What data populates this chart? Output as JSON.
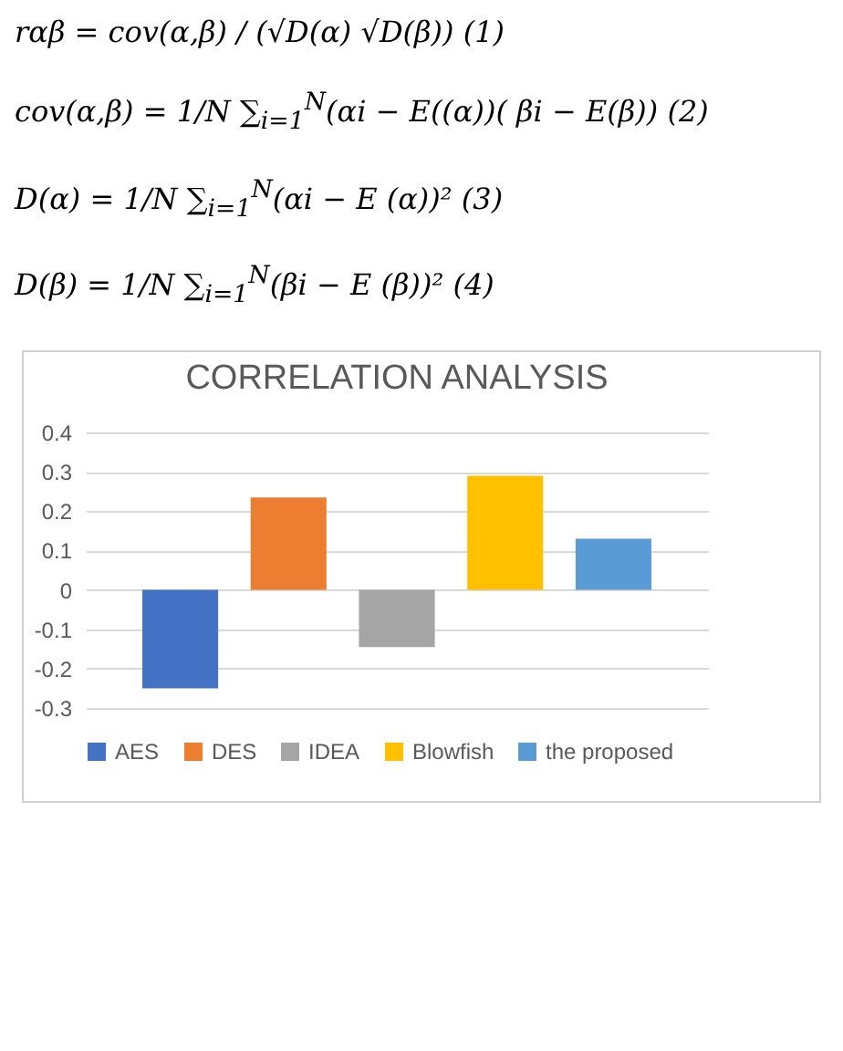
{
  "chart_data": {
    "type": "bar",
    "title": "CORRELATION ANALYSIS",
    "annotations": [
      "rαβ = cov(α,β) / (√D(α) √D(β))   (1)",
      "cov(α,β) = 1/N ∑$_{i=1}$$^{N}$(αi − E((α))( βi − E(β))   (2)",
      "D(α) = 1/N ∑$_{i=1}$$^{N}$(αi − E (α))²   (3)",
      "D(β) = 1/N ∑$_{i=1}$$^{N}$(βi − E (β))²   (4)"
    ],
    "categories": [
      null
    ],
    "series": [
      {
        "name": "AES",
        "color": "#4472c4",
        "values": [
          -0.25
        ]
      },
      {
        "name": "DES",
        "color": "#ed7d31",
        "values": [
          0.235
        ]
      },
      {
        "name": "IDEA",
        "color": "#a5a5a5",
        "values": [
          -0.145
        ]
      },
      {
        "name": "Blowfish",
        "color": "#ffc000",
        "values": [
          0.29
        ]
      },
      {
        "name": "the proposed",
        "color": "#5b9bd5",
        "values": [
          0.13
        ]
      }
    ],
    "ylim": [
      -0.3,
      0.4
    ],
    "yticks": [
      -0.3,
      -0.2,
      -0.1,
      0,
      0.1,
      0.2,
      0.3,
      0.4
    ],
    "grid": "y",
    "legend": "bottom"
  }
}
